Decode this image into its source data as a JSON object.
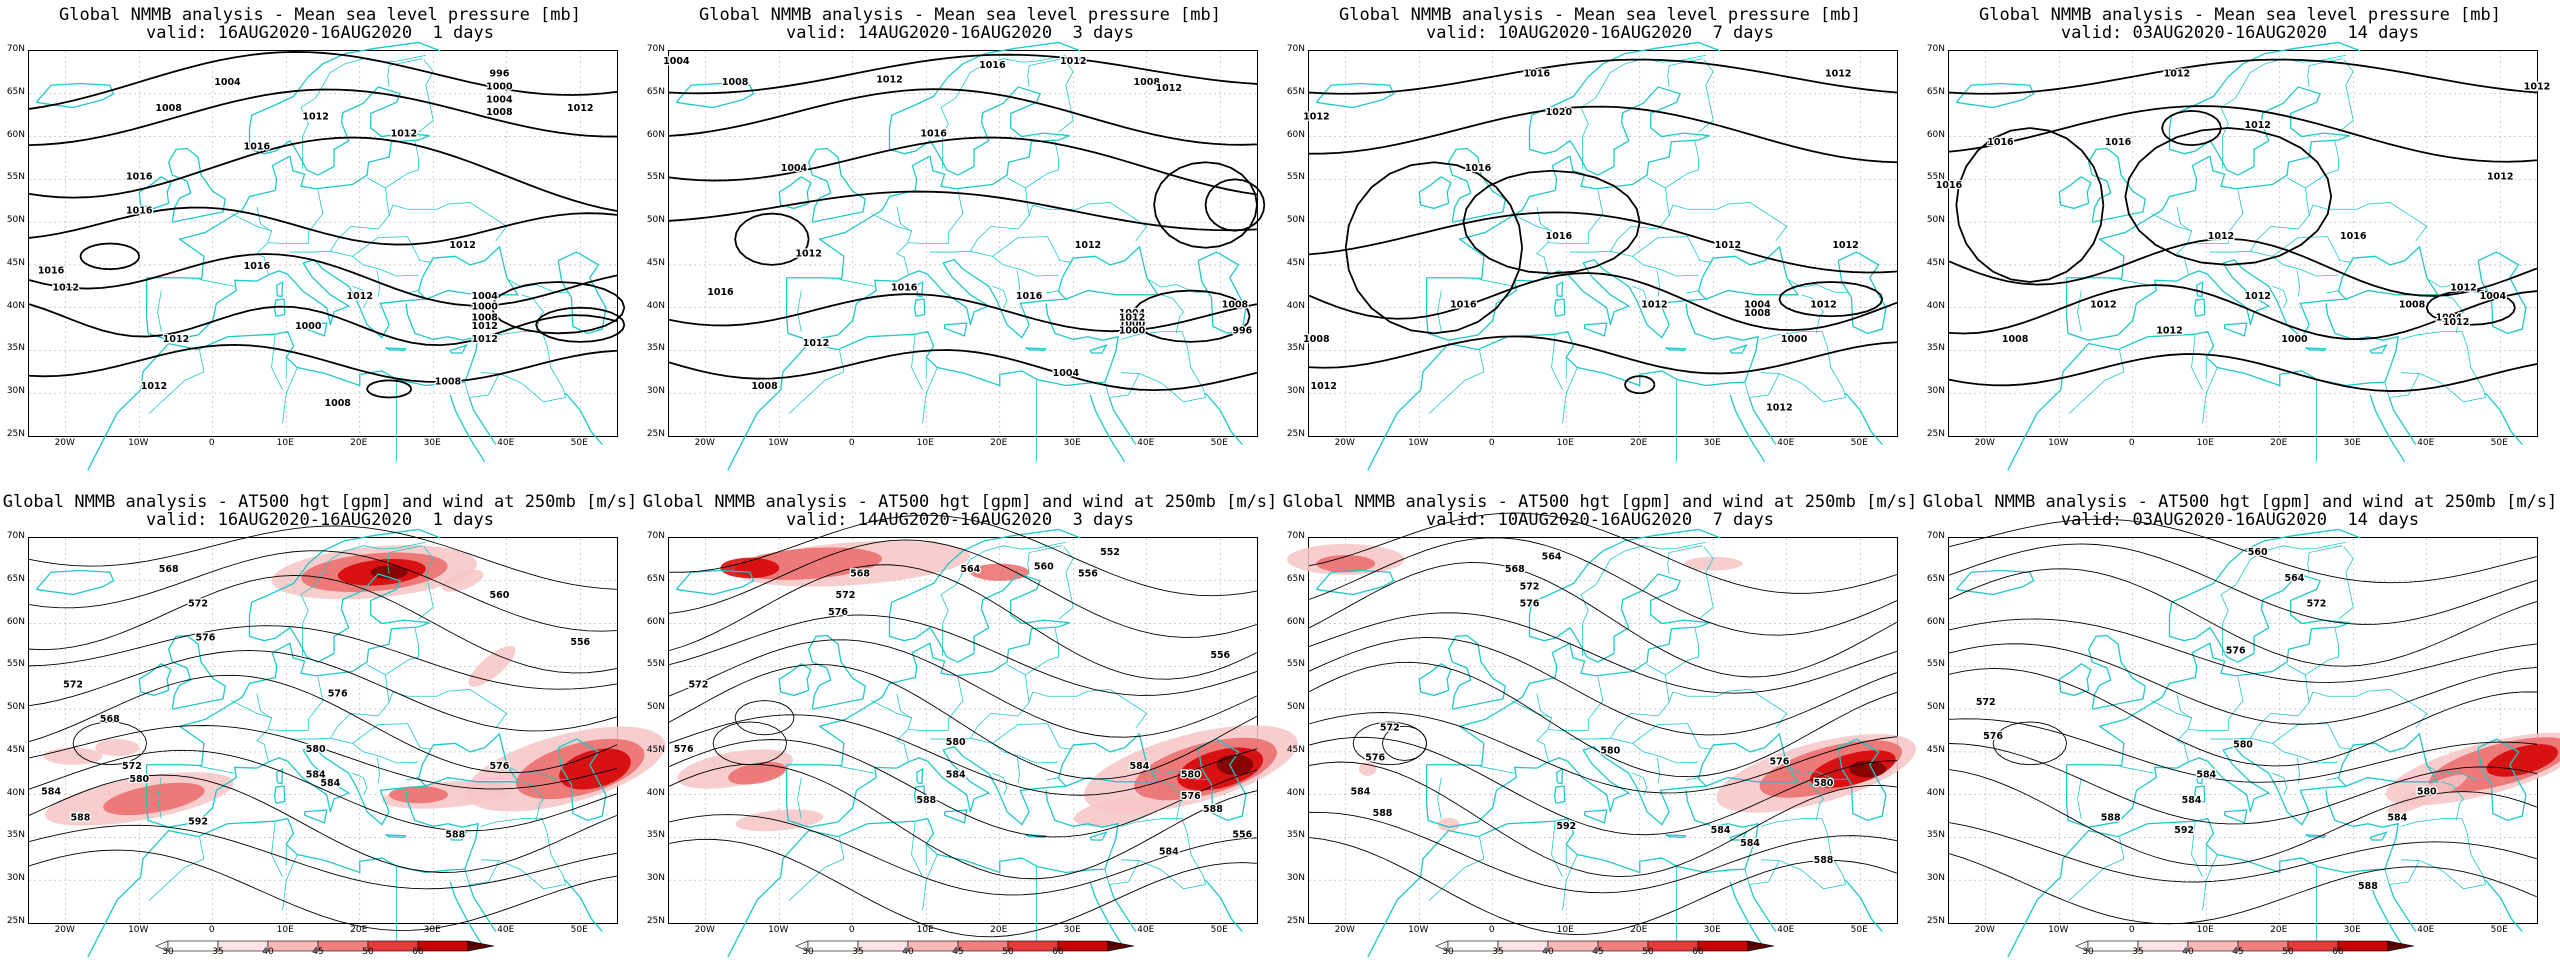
{
  "lat_labels": [
    "70N",
    "65N",
    "60N",
    "55N",
    "50N",
    "45N",
    "40N",
    "35N",
    "30N",
    "25N"
  ],
  "lon_labels": [
    "20W",
    "10W",
    "0",
    "10E",
    "20E",
    "30E",
    "40E",
    "50E"
  ],
  "colorbar_labels": [
    "30",
    "35",
    "40",
    "45",
    "50",
    "60"
  ],
  "colors": {
    "coast": "#1fc8c8",
    "contour": "#000000",
    "grid": "#b0b0b0",
    "wind_light": "#f7c4c4",
    "wind_mid": "#ec6a6a",
    "wind_dark": "#d40000",
    "wind_darkest": "#7a0000"
  },
  "slp_panels": [
    {
      "title": "Global NMMB analysis - Mean sea level pressure [mb]",
      "subtitle": "valid: 16AUG2020-16AUG2020  1 days",
      "labels": [
        "1004",
        "1008",
        "1012",
        "1016",
        "1016",
        "1012",
        "996",
        "1000",
        "1004",
        "1008",
        "1012",
        "1012",
        "1016",
        "1016",
        "1012",
        "1016",
        "1012",
        "1012",
        "1012",
        "1008",
        "1004",
        "1000",
        "1008",
        "1012",
        "1000",
        "1008",
        "1012"
      ]
    },
    {
      "title": "Global NMMB analysis - Mean sea level pressure [mb]",
      "subtitle": "valid: 14AUG2020-16AUG2020  3 days",
      "labels": [
        "1004",
        "1008",
        "1012",
        "1016",
        "1012",
        "1004",
        "1008",
        "1012",
        "1016",
        "1012",
        "1016",
        "1012",
        "1016",
        "1008",
        "1004",
        "1000",
        "1012",
        "1016",
        "1008",
        "1012",
        "1004",
        "996",
        "1000"
      ]
    },
    {
      "title": "Global NMMB analysis - Mean sea level pressure [mb]",
      "subtitle": "valid: 10AUG2020-16AUG2020  7 days",
      "labels": [
        "1016",
        "1012",
        "1012",
        "1020",
        "1016",
        "1016",
        "1012",
        "1012",
        "1016",
        "1012",
        "1008",
        "1004",
        "1012",
        "1012",
        "1008",
        "1012",
        "1000"
      ]
    },
    {
      "title": "Global NMMB analysis - Mean sea level pressure [mb]",
      "subtitle": "valid: 03AUG2020-16AUG2020  14 days",
      "labels": [
        "1012",
        "1012",
        "1016",
        "1016",
        "1016",
        "1012",
        "1012",
        "1012",
        "1016",
        "1012",
        "1012",
        "1008",
        "1004",
        "1004",
        "1012",
        "1008",
        "1012",
        "1000",
        "1012"
      ]
    }
  ],
  "z500_panels": [
    {
      "title": "Global NMMB analysis - AT500 hgt [gpm] and wind at 250mb [m/s]",
      "subtitle": "valid: 16AUG2020-16AUG2020  1 days",
      "labels": [
        "568",
        "572",
        "576",
        "560",
        "556",
        "572",
        "576",
        "568",
        "572",
        "580",
        "584",
        "588",
        "592",
        "580",
        "584",
        "576",
        "584",
        "588"
      ]
    },
    {
      "title": "Global NMMB analysis - AT500 hgt [gpm] and wind at 250mb [m/s]",
      "subtitle": "valid: 14AUG2020-16AUG2020  3 days",
      "labels": [
        "552",
        "556",
        "560",
        "564",
        "568",
        "572",
        "576",
        "556",
        "572",
        "576",
        "580",
        "584",
        "588",
        "580",
        "584",
        "588",
        "576",
        "584",
        "556"
      ]
    },
    {
      "title": "Global NMMB analysis - AT500 hgt [gpm] and wind at 250mb [m/s]",
      "subtitle": "valid: 10AUG2020-16AUG2020  7 days",
      "labels": [
        "564",
        "568",
        "572",
        "576",
        "572",
        "576",
        "580",
        "584",
        "588",
        "592",
        "584",
        "576",
        "580",
        "584",
        "588"
      ]
    },
    {
      "title": "Global NMMB analysis - AT500 hgt [gpm] and wind at 250mb [m/s]",
      "subtitle": "valid: 03AUG2020-16AUG2020  14 days",
      "labels": [
        "560",
        "564",
        "572",
        "576",
        "572",
        "576",
        "580",
        "584",
        "588",
        "592",
        "580",
        "584",
        "588",
        "584"
      ]
    }
  ]
}
